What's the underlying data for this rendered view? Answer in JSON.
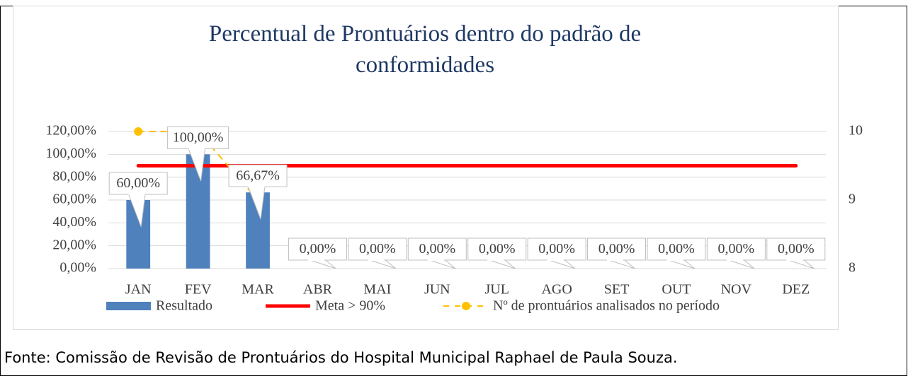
{
  "chart_data": {
    "type": "bar",
    "title": "Percentual de Prontuários dentro do padrão de conformidades",
    "categories": [
      "JAN",
      "FEV",
      "MAR",
      "ABR",
      "MAI",
      "JUN",
      "JUL",
      "AGO",
      "SET",
      "OUT",
      "NOV",
      "DEZ"
    ],
    "series": [
      {
        "name": "Resultado",
        "type": "bar",
        "color": "#4f81bd",
        "values": [
          60,
          100,
          66.67,
          0,
          0,
          0,
          0,
          0,
          0,
          0,
          0,
          0
        ],
        "value_labels": [
          "60,00%",
          "100,00%",
          "66,67%",
          "0,00%",
          "0,00%",
          "0,00%",
          "0,00%",
          "0,00%",
          "0,00%",
          "0,00%",
          "0,00%",
          "0,00%"
        ]
      },
      {
        "name": "Meta > 90%",
        "type": "line",
        "color": "#ff0000",
        "values": [
          90,
          90,
          90,
          90,
          90,
          90,
          90,
          90,
          90,
          90,
          90,
          90
        ]
      },
      {
        "name": "Nº de prontuários analisados no período",
        "type": "line",
        "color": "#ffc000",
        "axis": "y2",
        "dashed": true,
        "markers": true,
        "values": [
          10,
          10,
          9,
          null,
          null,
          null,
          null,
          null,
          null,
          null,
          null,
          null
        ]
      }
    ],
    "ylim": [
      0,
      120
    ],
    "yticks": [
      {
        "value": 0,
        "label": "0,00%"
      },
      {
        "value": 20,
        "label": "20,00%"
      },
      {
        "value": 40,
        "label": "40,00%"
      },
      {
        "value": 60,
        "label": "60,00%"
      },
      {
        "value": 80,
        "label": "80,00%"
      },
      {
        "value": 100,
        "label": "100,00%"
      },
      {
        "value": 120,
        "label": "120,00%"
      }
    ],
    "y2lim": [
      8,
      10
    ],
    "y2ticks": [
      8,
      9,
      10
    ],
    "grid": true,
    "legend": "bottom"
  },
  "footer": {
    "text": "Fonte: Comissão de Revisão de Prontuários do Hospital Municipal Raphael de Paula Souza."
  }
}
